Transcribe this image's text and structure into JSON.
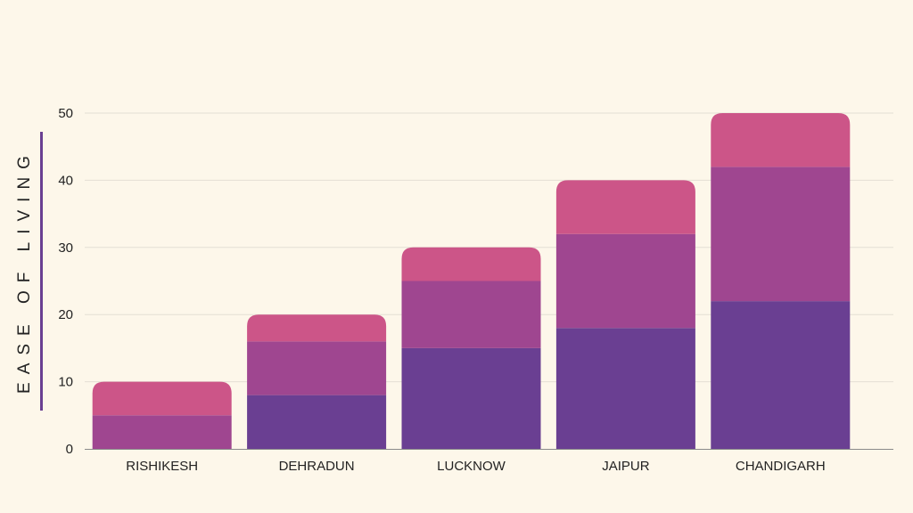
{
  "chart_data": {
    "type": "bar",
    "stacked": true,
    "categories": [
      "RISHIKESH",
      "DEHRADUN",
      "LUCKNOW",
      "JAIPUR",
      "CHANDIGARH"
    ],
    "series": [
      {
        "values": [
          0,
          8,
          15,
          18,
          22
        ],
        "color": "#6a3f92"
      },
      {
        "values": [
          5,
          8,
          10,
          14,
          20
        ],
        "color": "#9f4690"
      },
      {
        "values": [
          5,
          4,
          5,
          8,
          8
        ],
        "color": "#cc5588"
      }
    ],
    "title": "",
    "xlabel": "",
    "ylabel": "EASE OF LIVING",
    "ylim": [
      0,
      50
    ],
    "yticks": [
      "0",
      "10",
      "20",
      "30",
      "40",
      "50"
    ],
    "grid": true
  },
  "colors": {
    "background": "#fdf7ea",
    "gridline": "#e4dfd4",
    "axis_line": "#8a8a8a",
    "text": "#222222",
    "accent": "#6a3f92"
  }
}
